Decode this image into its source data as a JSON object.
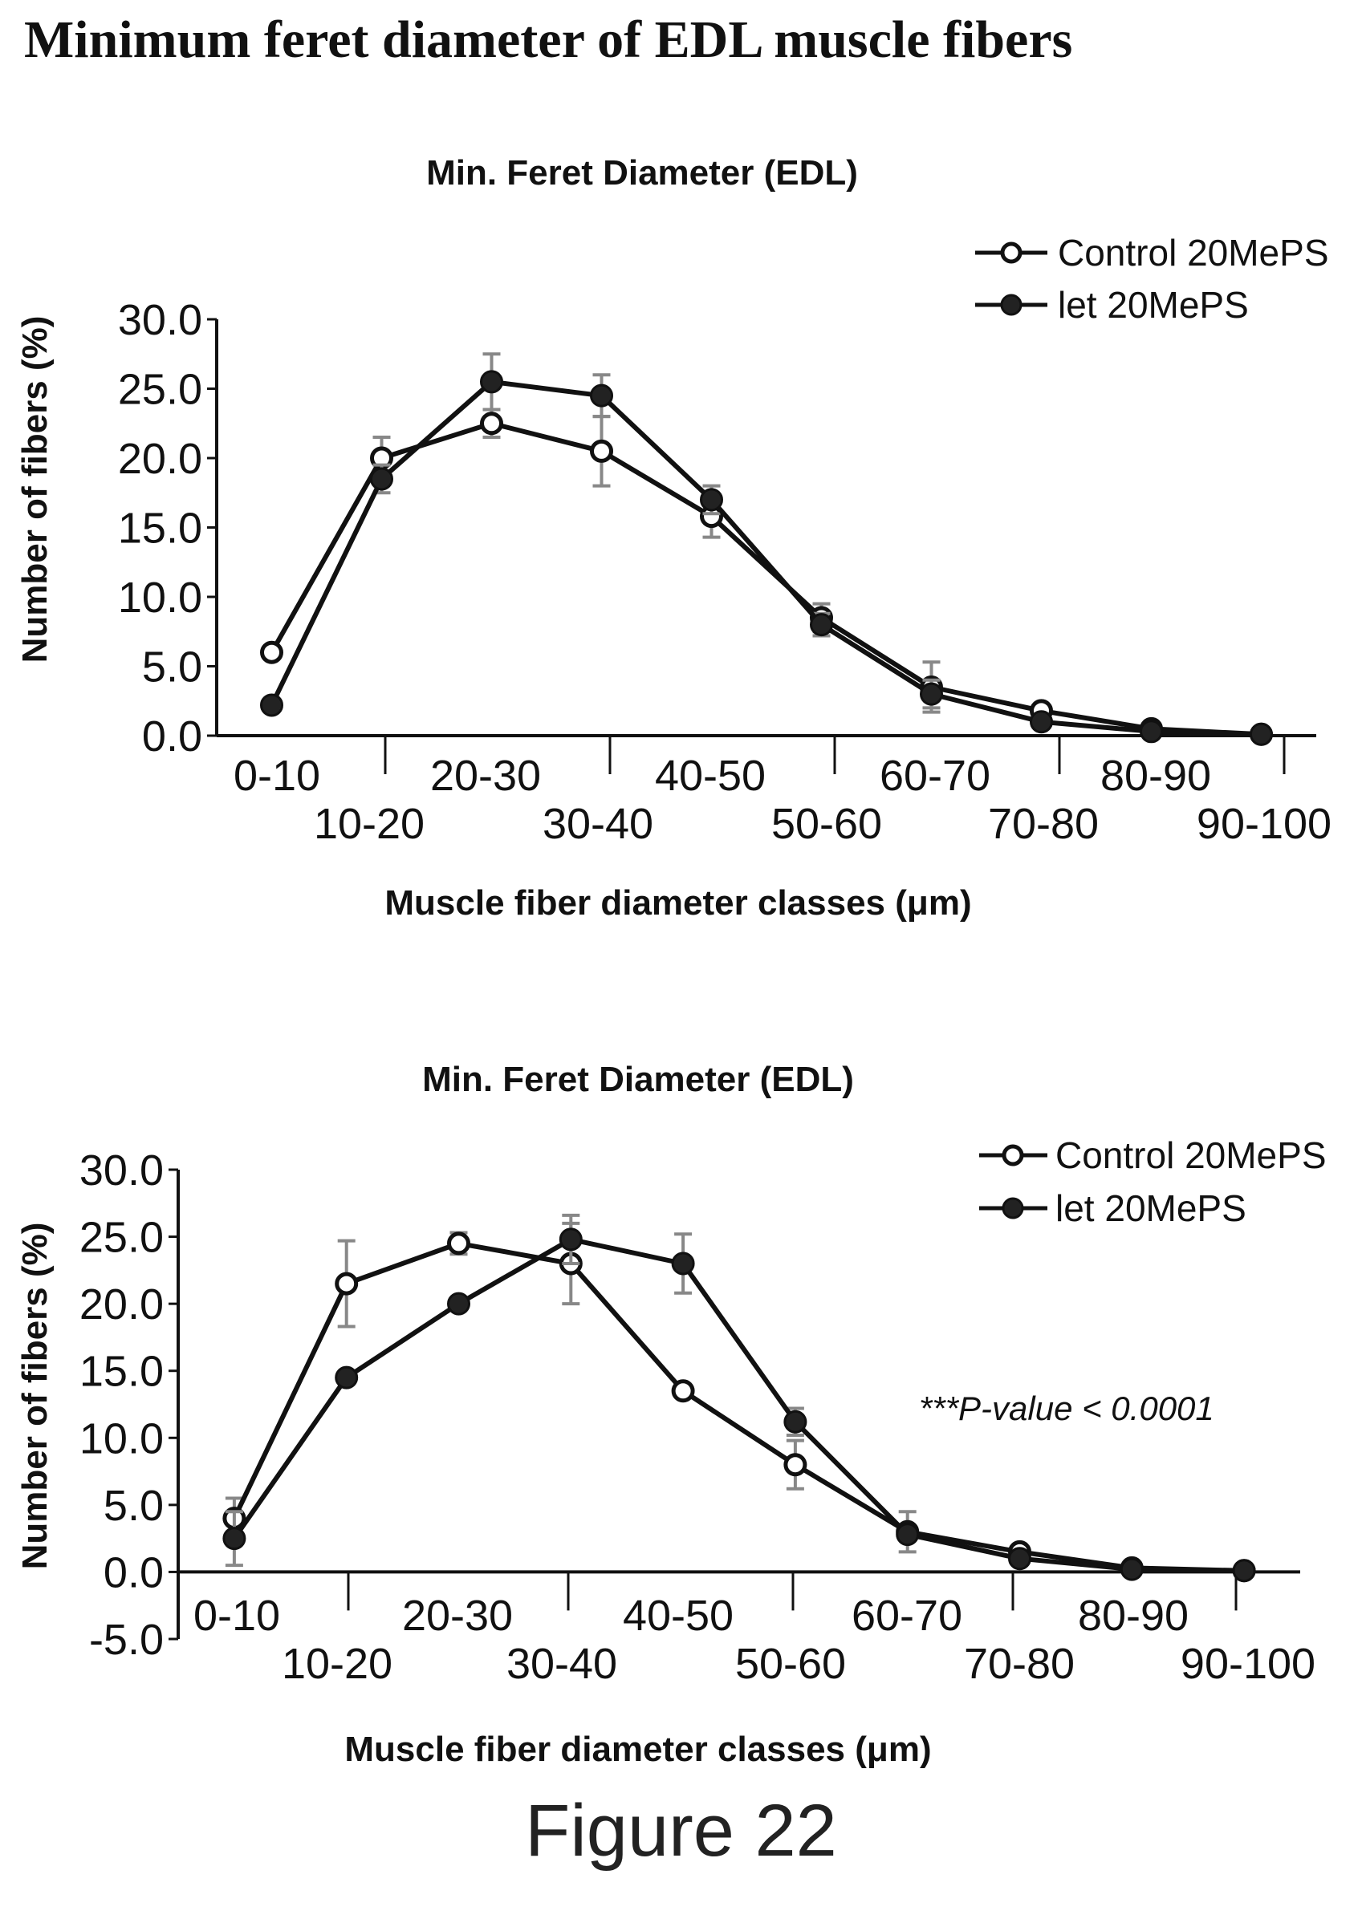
{
  "heading": "Minimum feret diameter of EDL muscle fibers",
  "caption": "Figure 22",
  "colors": {
    "ink": "#111111",
    "error_bar": "#888888",
    "marker_open_fill": "#ffffff",
    "marker_filled": "#222222"
  },
  "chart_data": [
    {
      "type": "line",
      "title": "Min. Feret Diameter (EDL)",
      "xlabel": "Muscle fiber diameter classes (μm)",
      "ylabel": "Number of fibers (%)",
      "ylim": [
        0,
        30
      ],
      "yticks": [
        "30.0",
        "25.0",
        "20.0",
        "15.0",
        "10.0",
        "5.0",
        "0.0"
      ],
      "categories": [
        "0-10",
        "10-20",
        "20-30",
        "30-40",
        "40-50",
        "50-60",
        "60-70",
        "70-80",
        "80-90",
        "90-100"
      ],
      "legend_position": "top-right",
      "series": [
        {
          "name": "Control 20MePS",
          "marker": "open",
          "values": [
            6.0,
            20.0,
            22.5,
            20.5,
            15.8,
            8.5,
            3.5,
            1.8,
            0.5,
            0.1
          ],
          "errors": [
            0,
            1.5,
            1.0,
            2.5,
            1.5,
            1.0,
            1.8,
            0,
            0,
            0
          ]
        },
        {
          "name": "let 20MePS",
          "marker": "filled",
          "values": [
            2.2,
            18.5,
            25.5,
            24.5,
            17.0,
            8.0,
            3.0,
            1.0,
            0.3,
            0.1
          ],
          "errors": [
            0,
            1.0,
            2.0,
            1.5,
            1.0,
            0.8,
            1.0,
            0,
            0,
            0
          ]
        }
      ]
    },
    {
      "type": "line",
      "title": "Min. Feret Diameter (EDL)",
      "xlabel": "Muscle fiber diameter classes (μm)",
      "ylabel": "Number of fibers (%)",
      "ylim": [
        -5,
        30
      ],
      "yticks": [
        "30.0",
        "25.0",
        "20.0",
        "15.0",
        "10.0",
        "5.0",
        "0.0",
        "-5.0"
      ],
      "categories": [
        "0-10",
        "10-20",
        "20-30",
        "30-40",
        "40-50",
        "50-60",
        "60-70",
        "70-80",
        "80-90",
        "90-100"
      ],
      "legend_position": "top-right",
      "annotation": "***P-value < 0.0001",
      "series": [
        {
          "name": "Control 20MePS",
          "marker": "open",
          "values": [
            4.0,
            21.5,
            24.5,
            23.0,
            13.5,
            8.0,
            3.0,
            1.5,
            0.3,
            0.1
          ],
          "errors": [
            1.5,
            3.2,
            0.8,
            3.0,
            0,
            1.8,
            1.5,
            0,
            0,
            0
          ]
        },
        {
          "name": "let 20MePS",
          "marker": "filled",
          "values": [
            2.5,
            14.5,
            20.0,
            24.8,
            23.0,
            11.2,
            2.8,
            1.0,
            0.2,
            0.1
          ],
          "errors": [
            2.0,
            0,
            0,
            1.8,
            2.2,
            1.0,
            0,
            0,
            0,
            0
          ]
        }
      ]
    }
  ]
}
